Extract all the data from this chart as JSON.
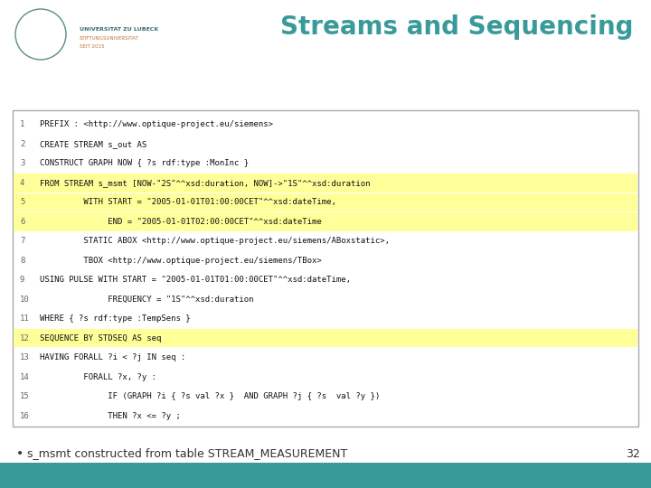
{
  "title": "Streams and Sequencing",
  "title_color": "#3a9a9a",
  "background_color": "#ffffff",
  "footer_bar_color": "#3a9a9a",
  "page_number": "32",
  "bullet_text": "s_msmt constructed from table STREAM_MEASUREMENT",
  "code_lines": [
    {
      "num": 1,
      "text": "PREFIX : <http://www.optique-project.eu/siemens>",
      "highlight": false
    },
    {
      "num": 2,
      "text": "CREATE STREAM s_out AS",
      "highlight": false
    },
    {
      "num": 3,
      "text": "CONSTRUCT GRAPH NOW { ?s rdf:type :MonInc }",
      "highlight": false
    },
    {
      "num": 4,
      "text": "FROM STREAM s_msmt [NOW-\"2S\"^^xsd:duration, NOW]->\"1S\"^^xsd:duration",
      "highlight": true
    },
    {
      "num": 5,
      "text": "         WITH START = \"2005-01-01T01:00:00CET\"^^xsd:dateTime,",
      "highlight": true
    },
    {
      "num": 6,
      "text": "              END = \"2005-01-01T02:00:00CET\"^^xsd:dateTime",
      "highlight": true
    },
    {
      "num": 7,
      "text": "         STATIC ABOX <http://www.optique-project.eu/siemens/ABoxstatic>,",
      "highlight": false
    },
    {
      "num": 8,
      "text": "         TBOX <http://www.optique-project.eu/siemens/TBox>",
      "highlight": false
    },
    {
      "num": 9,
      "text": "USING PULSE WITH START = \"2005-01-01T01:00:00CET\"^^xsd:dateTime,",
      "highlight": false
    },
    {
      "num": 10,
      "text": "              FREQUENCY = \"1S\"^^xsd:duration",
      "highlight": false
    },
    {
      "num": 11,
      "text": "WHERE { ?s rdf:type :TempSens }",
      "highlight": false
    },
    {
      "num": 12,
      "text": "SEQUENCE BY STDSEQ AS seq",
      "highlight": true
    },
    {
      "num": 13,
      "text": "HAVING FORALL ?i < ?j IN seq :",
      "highlight": false
    },
    {
      "num": 14,
      "text": "         FORALL ?x, ?y :",
      "highlight": false
    },
    {
      "num": 15,
      "text": "              IF (GRAPH ?i { ?s val ?x }  AND GRAPH ?j { ?s  val ?y })",
      "highlight": false
    },
    {
      "num": 16,
      "text": "              THEN ?x <= ?y ;",
      "highlight": false
    }
  ],
  "highlight_color": "#ffff99",
  "line_num_color": "#666666",
  "code_font_size": 6.5,
  "line_num_font_size": 6.5
}
